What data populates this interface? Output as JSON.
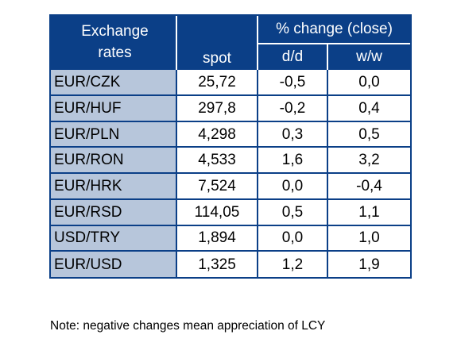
{
  "table": {
    "title_line1": "Exchange",
    "title_line2": "rates",
    "spot_header": "spot",
    "group_header": "% change (close)",
    "dd_header": "d/d",
    "ww_header": "w/w",
    "rows": [
      {
        "pair": "EUR/CZK",
        "spot": "25,72",
        "dd": "-0,5",
        "ww": "0,0"
      },
      {
        "pair": "EUR/HUF",
        "spot": "297,8",
        "dd": "-0,2",
        "ww": "0,4"
      },
      {
        "pair": "EUR/PLN",
        "spot": "4,298",
        "dd": "0,3",
        "ww": "0,5"
      },
      {
        "pair": "EUR/RON",
        "spot": "4,533",
        "dd": "1,6",
        "ww": "3,2"
      },
      {
        "pair": "EUR/HRK",
        "spot": "7,524",
        "dd": "0,0",
        "ww": "-0,4"
      },
      {
        "pair": "EUR/RSD",
        "spot": "114,05",
        "dd": "0,5",
        "ww": "1,1"
      },
      {
        "pair": "USD/TRY",
        "spot": "1,894",
        "dd": "0,0",
        "ww": "1,0"
      },
      {
        "pair": "EUR/USD",
        "spot": "1,325",
        "dd": "1,2",
        "ww": "1,9"
      }
    ]
  },
  "note": "Note: negative changes mean appreciation of LCY",
  "colors": {
    "header_bg": "#0b3f87",
    "pair_cell_bg": "#b7c6db",
    "value_cell_bg": "#ffffff"
  }
}
